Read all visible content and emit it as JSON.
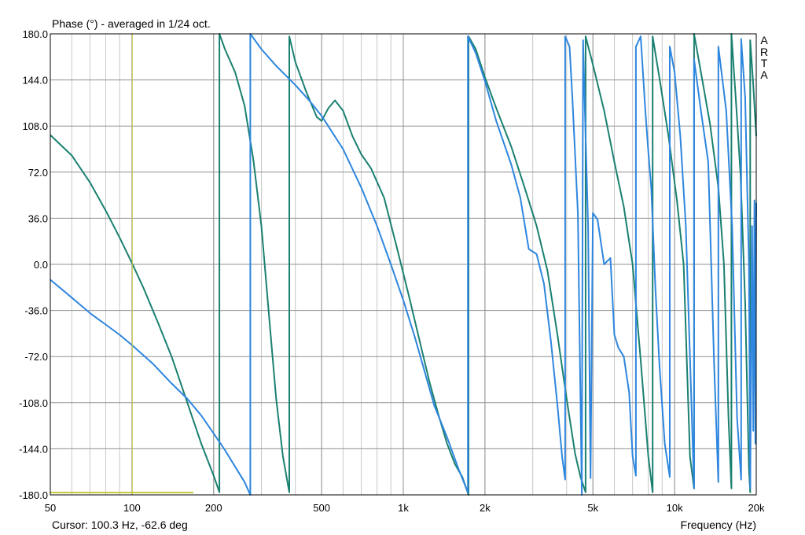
{
  "window": {
    "title": "Phase (°) - averaged in 1/24 oct.",
    "cursor_readout": "Cursor: 100.3 Hz, -62.6 deg",
    "brand": [
      "A",
      "R",
      "T",
      "A"
    ]
  },
  "chart_data": {
    "type": "line",
    "title": "Phase (°) - averaged in 1/24 oct.",
    "xlabel": "Frequency (Hz)",
    "ylabel": "",
    "x_scale": "log",
    "xlim": [
      50,
      20000
    ],
    "ylim": [
      -180,
      180
    ],
    "yticks": [
      180,
      144,
      108,
      72,
      36,
      0,
      -36,
      -72,
      -108,
      -144,
      -180
    ],
    "ytick_labels": [
      "180.0",
      "144.0",
      "108.0",
      "72.0",
      "36.0",
      "0.0",
      "-36.0",
      "-72.0",
      "-108.0",
      "-144.0",
      "-180.0"
    ],
    "xticks": [
      50,
      100,
      200,
      500,
      1000,
      2000,
      5000,
      10000,
      20000
    ],
    "xtick_labels": [
      "50",
      "100",
      "200",
      "500",
      "1k",
      "2k",
      "5k",
      "10k",
      "20k"
    ],
    "grid": true,
    "cursor": {
      "x": 100.3,
      "y": -62.6
    },
    "series": [
      {
        "color": "#1a8070",
        "points": [
          [
            50,
            101
          ],
          [
            60,
            85
          ],
          [
            70,
            64
          ],
          [
            80,
            42
          ],
          [
            90,
            21
          ],
          [
            100,
            1
          ],
          [
            110,
            -18
          ],
          [
            125,
            -46
          ],
          [
            140,
            -72
          ],
          [
            160,
            -108
          ],
          [
            180,
            -140
          ],
          [
            200,
            -165
          ],
          [
            210,
            -178
          ],
          [
            210,
            180
          ],
          [
            220,
            168
          ],
          [
            240,
            150
          ],
          [
            260,
            124
          ],
          [
            280,
            82
          ],
          [
            300,
            30
          ],
          [
            320,
            -40
          ],
          [
            340,
            -105
          ],
          [
            360,
            -150
          ],
          [
            380,
            -178
          ],
          [
            380,
            178
          ],
          [
            400,
            158
          ],
          [
            440,
            134
          ],
          [
            480,
            115
          ],
          [
            500,
            112
          ],
          [
            530,
            122
          ],
          [
            560,
            128
          ],
          [
            600,
            120
          ],
          [
            650,
            100
          ],
          [
            700,
            86
          ],
          [
            760,
            75
          ],
          [
            850,
            52
          ],
          [
            950,
            12
          ],
          [
            1050,
            -25
          ],
          [
            1150,
            -60
          ],
          [
            1250,
            -92
          ],
          [
            1350,
            -118
          ],
          [
            1450,
            -140
          ],
          [
            1550,
            -156
          ],
          [
            1650,
            -166
          ],
          [
            1740,
            -180
          ],
          [
            1740,
            178
          ],
          [
            1850,
            168
          ],
          [
            2000,
            146
          ],
          [
            2200,
            122
          ],
          [
            2500,
            92
          ],
          [
            2800,
            60
          ],
          [
            3100,
            30
          ],
          [
            3400,
            -5
          ],
          [
            3700,
            -55
          ],
          [
            4000,
            -105
          ],
          [
            4300,
            -148
          ],
          [
            4500,
            -166
          ],
          [
            4700,
            -178
          ],
          [
            4700,
            178
          ],
          [
            5000,
            156
          ],
          [
            5500,
            120
          ],
          [
            6000,
            80
          ],
          [
            6500,
            45
          ],
          [
            7000,
            0
          ],
          [
            7500,
            -75
          ],
          [
            8000,
            -150
          ],
          [
            8300,
            -178
          ],
          [
            8300,
            178
          ],
          [
            8800,
            145
          ],
          [
            9500,
            100
          ],
          [
            10200,
            50
          ],
          [
            10800,
            0
          ],
          [
            11400,
            -150
          ],
          [
            11800,
            -175
          ],
          [
            11800,
            180
          ],
          [
            12500,
            150
          ],
          [
            13500,
            110
          ],
          [
            14500,
            60
          ],
          [
            15200,
            0
          ],
          [
            15800,
            -120
          ],
          [
            16200,
            -175
          ],
          [
            16200,
            180
          ],
          [
            16800,
            130
          ],
          [
            17500,
            70
          ],
          [
            18200,
            -30
          ],
          [
            18800,
            -160
          ],
          [
            19000,
            -178
          ],
          [
            19000,
            175
          ],
          [
            19500,
            140
          ],
          [
            20000,
            100
          ]
        ]
      },
      {
        "color": "#2e86de",
        "points": [
          [
            50,
            -12
          ],
          [
            60,
            -26
          ],
          [
            70,
            -38
          ],
          [
            80,
            -47
          ],
          [
            90,
            -55
          ],
          [
            100,
            -63
          ],
          [
            120,
            -78
          ],
          [
            140,
            -93
          ],
          [
            160,
            -105
          ],
          [
            180,
            -118
          ],
          [
            200,
            -132
          ],
          [
            220,
            -145
          ],
          [
            240,
            -158
          ],
          [
            260,
            -170
          ],
          [
            273,
            -180
          ],
          [
            273,
            180
          ],
          [
            300,
            168
          ],
          [
            340,
            155
          ],
          [
            400,
            140
          ],
          [
            450,
            128
          ],
          [
            500,
            116
          ],
          [
            600,
            90
          ],
          [
            700,
            60
          ],
          [
            800,
            30
          ],
          [
            900,
            0
          ],
          [
            1000,
            -28
          ],
          [
            1100,
            -56
          ],
          [
            1200,
            -84
          ],
          [
            1300,
            -110
          ],
          [
            1450,
            -135
          ],
          [
            1600,
            -160
          ],
          [
            1730,
            -178
          ],
          [
            1730,
            178
          ],
          [
            1850,
            165
          ],
          [
            2000,
            143
          ],
          [
            2200,
            112
          ],
          [
            2500,
            78
          ],
          [
            2700,
            52
          ],
          [
            2900,
            12
          ],
          [
            3100,
            8
          ],
          [
            3300,
            -15
          ],
          [
            3500,
            -60
          ],
          [
            3700,
            -110
          ],
          [
            3850,
            -150
          ],
          [
            3950,
            -168
          ],
          [
            3950,
            178
          ],
          [
            4100,
            170
          ],
          [
            4200,
            130
          ],
          [
            4400,
            40
          ],
          [
            4550,
            -180
          ],
          [
            4600,
            175
          ],
          [
            4700,
            100
          ],
          [
            4800,
            30
          ],
          [
            4900,
            -167
          ],
          [
            5000,
            40
          ],
          [
            5200,
            35
          ],
          [
            5500,
            0
          ],
          [
            5800,
            5
          ],
          [
            6000,
            -55
          ],
          [
            6200,
            -65
          ],
          [
            6500,
            -72
          ],
          [
            6800,
            -100
          ],
          [
            7000,
            -150
          ],
          [
            7200,
            -165
          ],
          [
            7200,
            170
          ],
          [
            7500,
            178
          ],
          [
            7800,
            120
          ],
          [
            8000,
            88
          ],
          [
            8200,
            60
          ],
          [
            8500,
            -20
          ],
          [
            8800,
            -80
          ],
          [
            9200,
            -140
          ],
          [
            9600,
            -166
          ],
          [
            9600,
            170
          ],
          [
            10000,
            150
          ],
          [
            10500,
            100
          ],
          [
            11000,
            30
          ],
          [
            11500,
            -100
          ],
          [
            11800,
            -175
          ],
          [
            11800,
            160
          ],
          [
            12500,
            120
          ],
          [
            13300,
            80
          ],
          [
            14000,
            -80
          ],
          [
            14500,
            -170
          ],
          [
            14500,
            170
          ],
          [
            15500,
            120
          ],
          [
            16300,
            30
          ],
          [
            17000,
            -120
          ],
          [
            17600,
            -168
          ],
          [
            17600,
            176
          ],
          [
            18200,
            130
          ],
          [
            18800,
            0
          ],
          [
            19000,
            -175
          ],
          [
            19300,
            30
          ],
          [
            19500,
            -130
          ],
          [
            19700,
            50
          ],
          [
            19850,
            -140
          ],
          [
            20000,
            48
          ]
        ]
      }
    ],
    "legend": "none"
  }
}
